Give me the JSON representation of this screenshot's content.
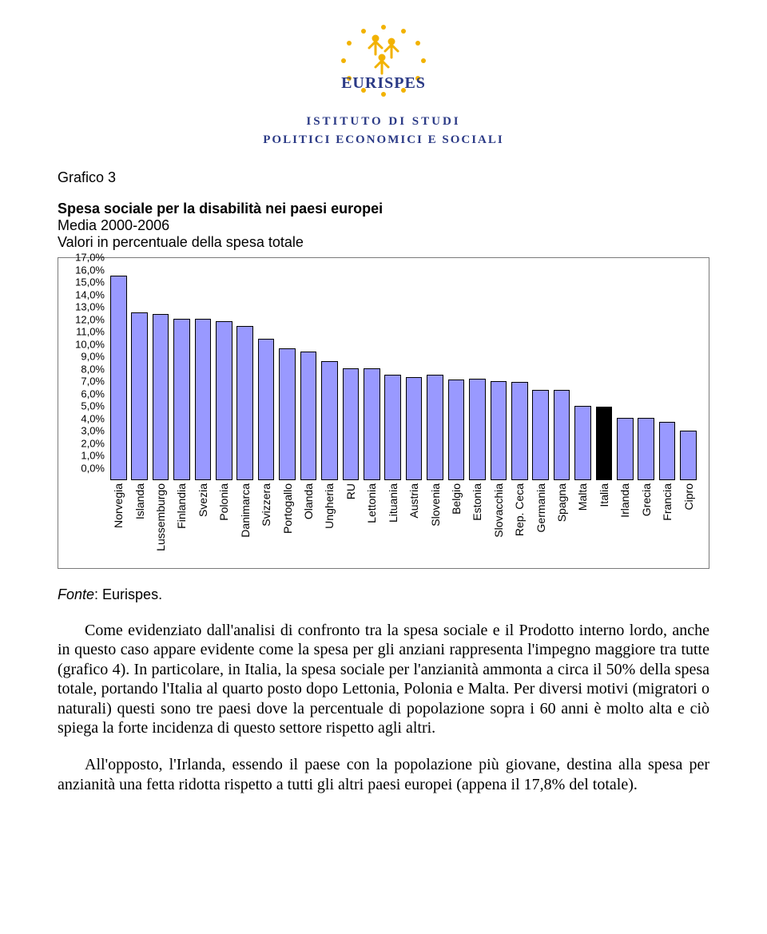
{
  "header": {
    "brand_text": "EURISPES",
    "subtitle_line1": "ISTITUTO DI STUDI",
    "subtitle_line2": "POLITICI ECONOMICI E SOCIALI",
    "accent_blue": "#2b3a86",
    "accent_yellow": "#f2b200"
  },
  "doc": {
    "grafico_label": "Grafico 3",
    "chart_title": "Spesa sociale per la disabilità nei paesi europei",
    "chart_sub1": "Media 2000-2006",
    "chart_sub2": "Valori in percentuale della spesa totale",
    "fonte_label": "Fonte",
    "fonte_value": ": Eurispes.",
    "para1": "Come evidenziato dall'analisi di confronto tra la spesa sociale e il Prodotto interno lordo, anche in questo caso appare evidente come la spesa per gli anziani rappresenta l'impegno maggiore tra tutte (grafico 4). In particolare, in Italia, la spesa sociale per l'anzianità ammonta a circa il 50% della spesa totale, portando l'Italia al quarto posto dopo Lettonia, Polonia e Malta. Per diversi motivi (migratori o naturali) questi sono tre paesi dove la percentuale di popolazione sopra i 60 anni è molto alta e ciò spiega la forte incidenza di questo settore rispetto agli altri.",
    "para2": "All'opposto, l'Irlanda, essendo il paese con la popolazione più giovane, destina alla spesa per anzianità una fetta ridotta rispetto a tutti gli altri paesi europei (appena il 17,8% del totale)."
  },
  "chart": {
    "type": "bar",
    "ylim": [
      0,
      17
    ],
    "ytick_step": 1,
    "ytick_suffix": ",0%",
    "bar_fill": "#9999ff",
    "bar_border": "#000000",
    "highlight_fill": "#000000",
    "box_border": "#7a7a7a",
    "background": "#ffffff",
    "label_fontsize": 14,
    "tick_fontsize": 13,
    "categories": [
      "Norvegia",
      "Islanda",
      "Lussemburgo",
      "Finlandia",
      "Svezia",
      "Polonia",
      "Danimarca",
      "Svizzera",
      "Portogallo",
      "Olanda",
      "Ungheria",
      "RU",
      "Lettonia",
      "Lituania",
      "Austria",
      "Slovenia",
      "Belgio",
      "Estonia",
      "Slovacchia",
      "Rep. Ceca",
      "Germania",
      "Spagna",
      "Malta",
      "Italia",
      "Irlanda",
      "Grecia",
      "Francia",
      "Cipro"
    ],
    "values": [
      16.5,
      13.5,
      13.4,
      13.0,
      13.0,
      12.8,
      12.4,
      11.4,
      10.6,
      10.4,
      9.6,
      9.0,
      9.0,
      8.5,
      8.3,
      8.5,
      8.1,
      8.2,
      8.0,
      7.9,
      7.3,
      7.3,
      6.0,
      5.9,
      5.0,
      5.0,
      4.7,
      4.0
    ],
    "highlight_index": 23
  }
}
